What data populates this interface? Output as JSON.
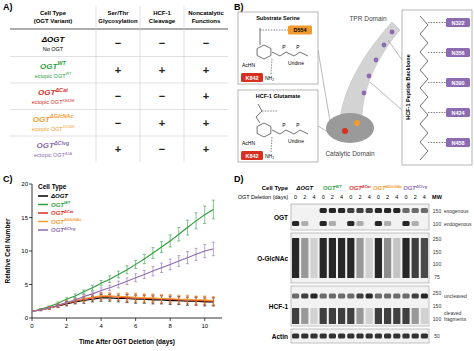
{
  "panel_labels": [
    "A)",
    "B)",
    "C)",
    "D)"
  ],
  "panel_a": {
    "header": [
      [
        "Cell Type",
        "(OGT Variant)"
      ],
      [
        "Ser/Thr",
        "Glycosylation"
      ],
      [
        "HCF-1",
        "Cleavage"
      ],
      [
        "Noncatalytic",
        "Functions"
      ]
    ],
    "rows": [
      {
        "label": "ΔOGT",
        "sub": "No OGT",
        "color": "#000000",
        "cells": [
          "−",
          "−",
          "−"
        ]
      },
      {
        "label": "OGT",
        "label_sup": "WT",
        "sub": "ectopic OGT",
        "sub_sup": "WT",
        "color": "#2e9e3e",
        "cells": [
          "+",
          "+",
          "+"
        ]
      },
      {
        "label": "OGT",
        "label_sup": "ΔCat",
        "sub": "ectopic OGT",
        "sub_sup": "K842M",
        "color": "#d7301f",
        "cells": [
          "−",
          "−",
          "+"
        ]
      },
      {
        "label": "OGT",
        "label_sup": "ΔGlcNAc",
        "sub": "ectopic OGT",
        "sub_sup": "D554N",
        "color": "#f29a2e",
        "cells": [
          "−",
          "+",
          "+"
        ]
      },
      {
        "label": "OGT",
        "label_sup": "ΔClvg",
        "sub": "ectopic OGT",
        "sub_sup": "Δ5A",
        "color": "#8c6bb1",
        "cells": [
          "+",
          "−",
          "+"
        ]
      }
    ]
  },
  "panel_b": {
    "substrate": {
      "title": "Substrate Serine",
      "residue": "D554",
      "residue_color": "#f29a2e",
      "lysine": "K842",
      "lysine_color": "#d7301f",
      "amine": "NH₂",
      "group": "AcHN",
      "phosphorus": "P",
      "nucleotide": "Uridine"
    },
    "glutamate": {
      "title": "HCF-1 Glutamate",
      "lysine": "K842",
      "lysine_color": "#d7301f",
      "amine": "NH₂",
      "group": "AcHN",
      "phosphorus": "P",
      "nucleotide": "Uridine"
    },
    "tpr": "TPR Domain",
    "catalytic": "Catalytic Domain",
    "backbone": {
      "title": "HCF-1 Peptide Backbone",
      "color": "#8c6bb1",
      "residues": [
        "N322",
        "N356",
        "N390",
        "N424",
        "N458"
      ]
    }
  },
  "chart_data": {
    "type": "line",
    "x_label": "Time After OGT Deletion (days)",
    "y_label": "Relative Cell Number",
    "x": [
      0,
      0.5,
      1,
      1.5,
      2,
      2.5,
      3,
      3.5,
      4,
      4.5,
      5,
      5.5,
      6,
      6.5,
      7,
      7.5,
      8,
      8.5,
      9,
      9.5,
      10,
      10.5
    ],
    "xlim": [
      0,
      11
    ],
    "xticks": [
      0,
      2,
      4,
      6,
      8,
      10
    ],
    "ylim": [
      0,
      20
    ],
    "yticks": [
      0,
      5,
      10,
      15,
      20
    ],
    "grid": false,
    "legend": "upper left",
    "legend_title": "Cell Type",
    "series": [
      {
        "name": "ΔOGT",
        "color": "#000000",
        "values": [
          1,
          1.2,
          1.5,
          1.8,
          2.1,
          2.4,
          2.6,
          2.8,
          3.0,
          3.0,
          2.9,
          2.9,
          2.8,
          2.8,
          2.7,
          2.7,
          2.6,
          2.6,
          2.5,
          2.5,
          2.4,
          2.4
        ],
        "errors": [
          0,
          0.1,
          0.2,
          0.2,
          0.3,
          0.3,
          0.4,
          0.4,
          0.5,
          0.5,
          0.5,
          0.6,
          0.6,
          0.6,
          0.6,
          0.6,
          0.6,
          0.6,
          0.6,
          0.6,
          0.6,
          0.6
        ]
      },
      {
        "name": "OGT",
        "name_sup": "WT",
        "color": "#2e9e3e",
        "values": [
          1,
          1.3,
          1.7,
          2.2,
          2.8,
          3.3,
          3.9,
          4.5,
          5.2,
          5.8,
          6.5,
          7.2,
          8.0,
          8.8,
          9.7,
          10.6,
          11.5,
          12.5,
          13.5,
          14.5,
          15.4,
          16.2
        ],
        "errors": [
          0,
          0.1,
          0.1,
          0.2,
          0.2,
          0.3,
          0.3,
          0.4,
          0.4,
          0.5,
          0.5,
          0.6,
          0.6,
          0.7,
          0.8,
          0.8,
          0.9,
          1.0,
          1.1,
          1.2,
          1.3,
          1.4
        ]
      },
      {
        "name": "OGT",
        "name_sup": "ΔCat",
        "color": "#d7301f",
        "values": [
          1,
          1.2,
          1.5,
          1.8,
          2.2,
          2.5,
          2.8,
          3.0,
          3.2,
          3.2,
          3.1,
          3.0,
          3.0,
          2.9,
          2.9,
          2.8,
          2.8,
          2.7,
          2.7,
          2.6,
          2.6,
          2.5
        ],
        "errors": [
          0,
          0.1,
          0.2,
          0.2,
          0.3,
          0.3,
          0.4,
          0.4,
          0.5,
          0.5,
          0.5,
          0.6,
          0.6,
          0.6,
          0.6,
          0.6,
          0.6,
          0.6,
          0.6,
          0.6,
          0.6,
          0.6
        ]
      },
      {
        "name": "OGT",
        "name_sup": "ΔGlcNAc",
        "color": "#f29a2e",
        "values": [
          1,
          1.2,
          1.5,
          1.9,
          2.3,
          2.6,
          2.9,
          3.1,
          3.3,
          3.3,
          3.2,
          3.2,
          3.1,
          3.0,
          3.0,
          2.9,
          2.9,
          2.8,
          2.8,
          2.7,
          2.7,
          2.6
        ],
        "errors": [
          0,
          0.1,
          0.2,
          0.2,
          0.3,
          0.3,
          0.4,
          0.4,
          0.5,
          0.5,
          0.5,
          0.6,
          0.6,
          0.6,
          0.6,
          0.6,
          0.6,
          0.6,
          0.6,
          0.6,
          0.6,
          0.6
        ]
      },
      {
        "name": "OGT",
        "name_sup": "ΔClvg",
        "color": "#8c6bb1",
        "values": [
          1,
          1.2,
          1.5,
          1.9,
          2.3,
          2.7,
          3.2,
          3.6,
          4.1,
          4.5,
          5.0,
          5.5,
          6.0,
          6.5,
          7.0,
          7.5,
          8.0,
          8.5,
          9.0,
          9.5,
          10.0,
          10.3
        ],
        "errors": [
          0,
          0.1,
          0.1,
          0.2,
          0.2,
          0.3,
          0.3,
          0.3,
          0.4,
          0.4,
          0.5,
          0.5,
          0.6,
          0.6,
          0.7,
          0.7,
          0.8,
          0.8,
          0.9,
          0.9,
          1.0,
          1.0
        ]
      }
    ]
  },
  "panel_d": {
    "column_header": "Cell Type",
    "day_header": "OGT Deletion (days)",
    "mw_header": "MW",
    "groups": [
      {
        "name": "ΔOGT",
        "color": "#000000",
        "days": [
          0,
          2,
          4
        ]
      },
      {
        "name": "OGT",
        "name_sup": "WT",
        "color": "#2e9e3e",
        "days": [
          0,
          2,
          4
        ]
      },
      {
        "name": "OGT",
        "name_sup": "ΔCat",
        "color": "#d7301f",
        "days": [
          0,
          2,
          4
        ]
      },
      {
        "name": "OGT",
        "name_sup": "ΔGlcNAc",
        "color": "#f29a2e",
        "days": [
          0,
          2,
          4
        ]
      },
      {
        "name": "OGT",
        "name_sup": "ΔClvg",
        "color": "#8c6bb1",
        "days": [
          0,
          2,
          4
        ]
      }
    ],
    "blots": [
      {
        "name": "OGT",
        "markers": [
          150,
          100
        ],
        "tracks": [
          {
            "label": [
              "exogenous"
            ],
            "kind": "band",
            "intensity": [
              0,
              0,
              0,
              0.9,
              0.9,
              0.9,
              0.8,
              0.8,
              0.8,
              0.9,
              0.9,
              0.9,
              0.6,
              0.6,
              0.6
            ]
          },
          {
            "label": [
              "endogenous"
            ],
            "kind": "band",
            "intensity": [
              0.9,
              0.3,
              0,
              0.9,
              0.3,
              0,
              0.9,
              0.3,
              0,
              0.9,
              0.3,
              0,
              0.9,
              0.3,
              0
            ]
          }
        ]
      },
      {
        "name": "O-GlcNAc",
        "markers": [
          250,
          150,
          100,
          75
        ],
        "tracks": [
          {
            "kind": "smear",
            "intensity": [
              0.9,
              0.4,
              0.15,
              0.9,
              0.9,
              0.9,
              0.9,
              0.4,
              0.15,
              0.9,
              0.45,
              0.2,
              0.9,
              0.8,
              0.75
            ]
          }
        ]
      },
      {
        "name": "HCF-1",
        "markers": [
          250,
          150,
          100
        ],
        "tracks": [
          {
            "label": [
              "uncleaved"
            ],
            "kind": "band",
            "intensity": [
              0.6,
              0.8,
              0.9,
              0.6,
              0.6,
              0.6,
              0.6,
              0.8,
              0.9,
              0.6,
              0.6,
              0.6,
              0.6,
              0.8,
              0.9
            ]
          },
          {
            "label": [
              "cleaved",
              "fragments"
            ],
            "kind": "smear",
            "intensity": [
              0.8,
              0.4,
              0.15,
              0.8,
              0.8,
              0.8,
              0.8,
              0.4,
              0.15,
              0.8,
              0.8,
              0.8,
              0.8,
              0.4,
              0.15
            ]
          }
        ]
      },
      {
        "name": "Actin",
        "markers": [
          50
        ],
        "tracks": [
          {
            "kind": "band",
            "intensity": [
              0.85,
              0.85,
              0.85,
              0.85,
              0.85,
              0.85,
              0.85,
              0.85,
              0.85,
              0.85,
              0.85,
              0.85,
              0.85,
              0.85,
              0.85
            ]
          }
        ]
      }
    ]
  }
}
